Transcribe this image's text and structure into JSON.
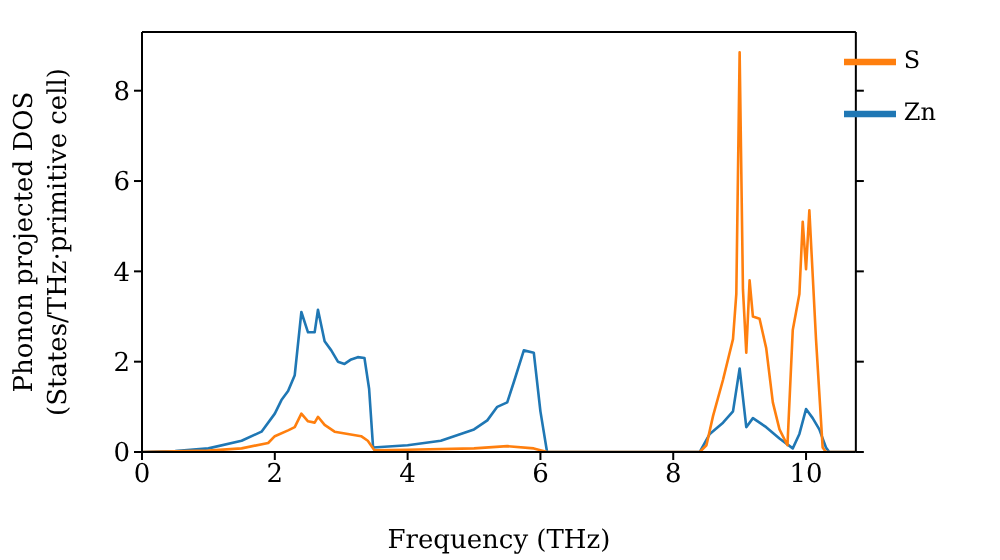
{
  "chart_data": {
    "type": "line",
    "xlabel": "Frequency (THz)",
    "ylabel": "Phonon projected DOS\n(States/THz·primitive cell)",
    "xlim": [
      0,
      10.75
    ],
    "ylim": [
      0,
      9.3
    ],
    "xticks": [
      0,
      2,
      4,
      6,
      8,
      10
    ],
    "yticks": [
      0,
      2,
      4,
      6,
      8
    ],
    "legend": "top right",
    "grid": false,
    "marker": "none",
    "line_style": "solid",
    "series": [
      {
        "name": "Zn",
        "color": "#1f77b4",
        "x": [
          0,
          0.5,
          1,
          1.5,
          1.8,
          2.0,
          2.1,
          2.2,
          2.3,
          2.4,
          2.5,
          2.6,
          2.65,
          2.75,
          2.85,
          2.95,
          3.05,
          3.15,
          3.25,
          3.35,
          3.42,
          3.48,
          4,
          4.5,
          5,
          5.2,
          5.35,
          5.5,
          5.6,
          5.75,
          5.9,
          6.0,
          6.1,
          8.4,
          8.55,
          8.75,
          8.9,
          9.0,
          9.1,
          9.2,
          9.4,
          9.6,
          9.8,
          9.9,
          10.0,
          10.1,
          10.2,
          10.3,
          10.35,
          10.75
        ],
        "values": [
          0,
          0.02,
          0.08,
          0.25,
          0.45,
          0.85,
          1.15,
          1.35,
          1.7,
          3.1,
          2.65,
          2.65,
          3.15,
          2.45,
          2.25,
          2.0,
          1.95,
          2.05,
          2.1,
          2.08,
          1.4,
          0.1,
          0.15,
          0.25,
          0.5,
          0.7,
          1.0,
          1.1,
          1.55,
          2.25,
          2.2,
          0.9,
          0,
          0,
          0.4,
          0.65,
          0.9,
          1.85,
          0.55,
          0.75,
          0.55,
          0.3,
          0.08,
          0.4,
          0.95,
          0.75,
          0.5,
          0.1,
          0,
          0
        ]
      },
      {
        "name": "S",
        "color": "#ff7f0e",
        "x": [
          0,
          1,
          1.5,
          1.9,
          2.0,
          2.2,
          2.3,
          2.4,
          2.5,
          2.6,
          2.65,
          2.75,
          2.9,
          3.1,
          3.3,
          3.4,
          3.5,
          4,
          5,
          5.5,
          5.9,
          6.1,
          8.4,
          8.5,
          8.6,
          8.75,
          8.9,
          8.95,
          9.0,
          9.05,
          9.1,
          9.15,
          9.2,
          9.3,
          9.4,
          9.5,
          9.6,
          9.72,
          9.8,
          9.9,
          9.95,
          10.0,
          10.05,
          10.15,
          10.25,
          10.3,
          10.75
        ],
        "values": [
          0,
          0.03,
          0.08,
          0.2,
          0.35,
          0.48,
          0.55,
          0.85,
          0.68,
          0.65,
          0.78,
          0.6,
          0.45,
          0.4,
          0.35,
          0.25,
          0.04,
          0.05,
          0.08,
          0.13,
          0.08,
          0,
          0,
          0.15,
          0.8,
          1.6,
          2.5,
          3.5,
          8.85,
          3.6,
          2.2,
          3.8,
          3.0,
          2.95,
          2.3,
          1.1,
          0.5,
          0.15,
          2.7,
          3.5,
          5.1,
          4.05,
          5.35,
          2.5,
          0.1,
          0,
          0
        ]
      }
    ]
  }
}
